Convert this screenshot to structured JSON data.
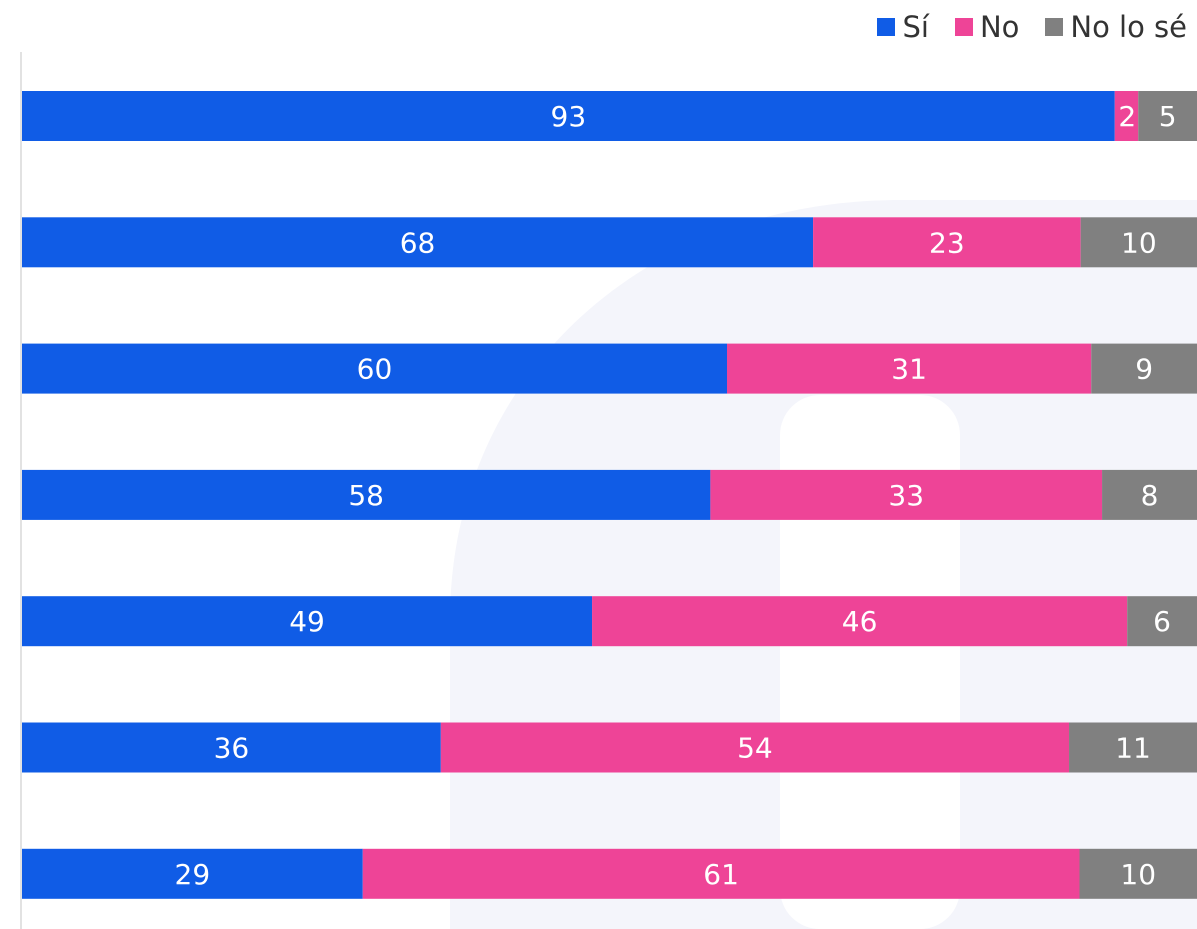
{
  "chart_data": {
    "type": "bar",
    "orientation": "horizontal",
    "stacked": true,
    "normalized": true,
    "categories": [
      "",
      "",
      "",
      "",
      "",
      "",
      ""
    ],
    "series": [
      {
        "name": "Sí",
        "color": "#105ce6",
        "values": [
          93,
          68,
          60,
          58,
          49,
          36,
          29
        ]
      },
      {
        "name": "No",
        "color": "#ee4497",
        "values": [
          2,
          23,
          31,
          33,
          46,
          54,
          61
        ]
      },
      {
        "name": "No lo sé",
        "color": "#808080",
        "values": [
          5,
          10,
          9,
          8,
          6,
          11,
          10
        ]
      }
    ],
    "data_labels": true,
    "legend_position": "top-right",
    "grid": false,
    "title": "",
    "xlabel": "",
    "ylabel": ""
  }
}
